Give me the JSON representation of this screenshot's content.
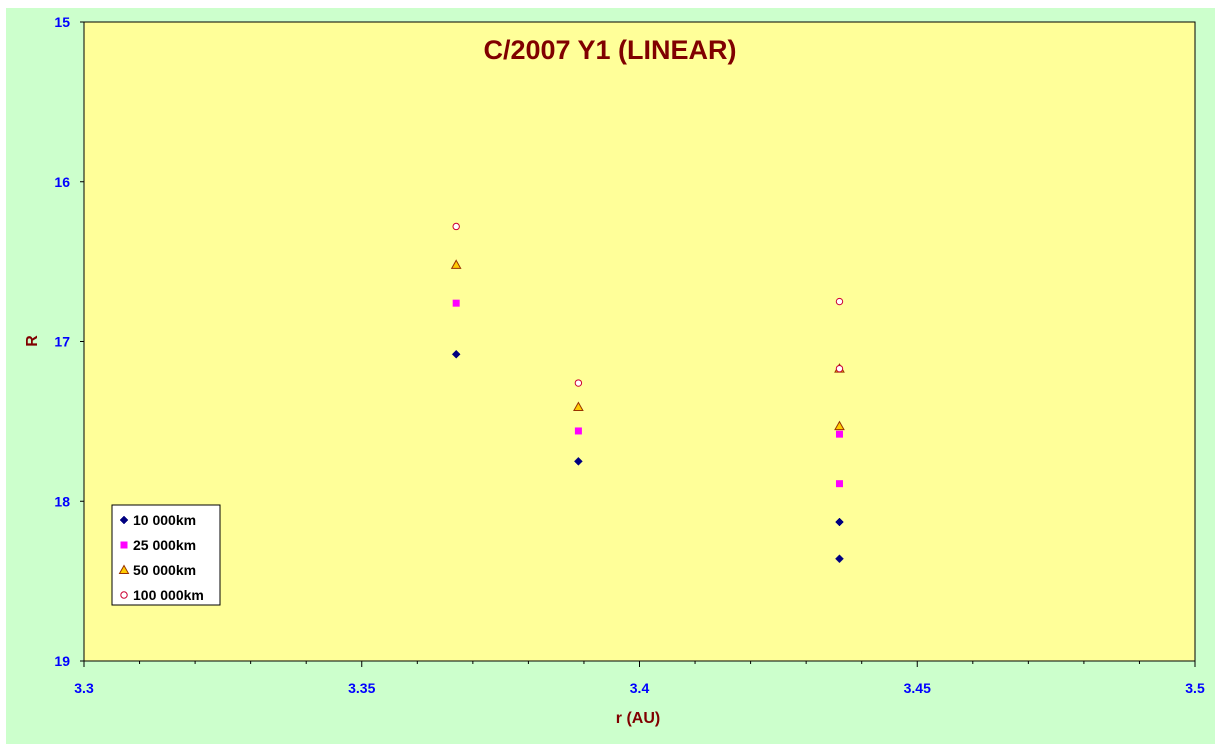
{
  "chart_data": {
    "type": "scatter",
    "title": "C/2007 Y1 (LINEAR)",
    "xlabel": "r (AU)",
    "ylabel": "R",
    "xlim": [
      3.3,
      3.5
    ],
    "ylim": [
      15,
      19
    ],
    "y_reversed": true,
    "x_ticks": [
      "3.3",
      "3.35",
      "3.4",
      "3.45",
      "3.5"
    ],
    "y_ticks": [
      "15",
      "16",
      "17",
      "18",
      "19"
    ],
    "grid": false,
    "legend_position": "bottom-left",
    "plot_background": "#ffff99",
    "chart_background": "#ccffcc",
    "series": [
      {
        "name": "10 000km",
        "marker": "diamond",
        "color": "#000080",
        "points": [
          [
            3.367,
            17.08
          ],
          [
            3.389,
            17.75
          ],
          [
            3.436,
            18.13
          ],
          [
            3.436,
            18.36
          ]
        ]
      },
      {
        "name": "25 000km",
        "marker": "square",
        "color": "#ff00ff",
        "points": [
          [
            3.367,
            16.76
          ],
          [
            3.389,
            17.56
          ],
          [
            3.436,
            17.58
          ],
          [
            3.436,
            17.89
          ]
        ]
      },
      {
        "name": "50 000km",
        "marker": "triangle",
        "color": "#ffcc00",
        "points": [
          [
            3.367,
            16.52
          ],
          [
            3.389,
            17.41
          ],
          [
            3.436,
            17.17
          ],
          [
            3.436,
            17.53
          ]
        ]
      },
      {
        "name": "100 000km",
        "marker": "circle",
        "color": "#ffffff",
        "points": [
          [
            3.367,
            16.28
          ],
          [
            3.389,
            17.26
          ],
          [
            3.436,
            16.75
          ],
          [
            3.436,
            17.17
          ]
        ]
      }
    ]
  }
}
